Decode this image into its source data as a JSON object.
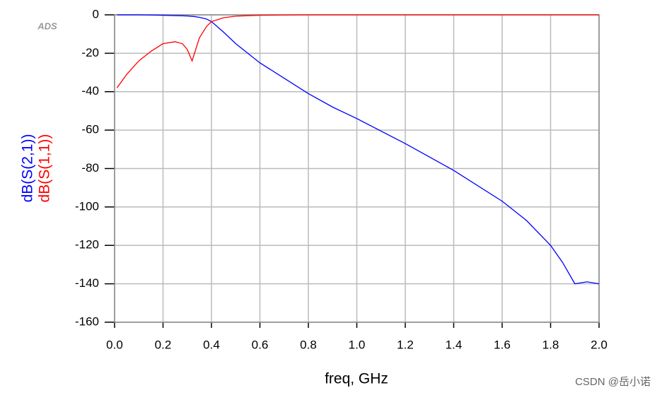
{
  "chart_data": {
    "type": "line",
    "logo": "ADS",
    "xlabel": "freq, GHz",
    "watermark": "CSDN @岳小诺",
    "x": [
      0.01,
      0.05,
      0.1,
      0.15,
      0.2,
      0.25,
      0.28,
      0.3,
      0.32,
      0.33,
      0.35,
      0.38,
      0.4,
      0.45,
      0.5,
      0.6,
      0.7,
      0.8,
      0.9,
      1.0,
      1.2,
      1.4,
      1.6,
      1.7,
      1.8,
      1.85,
      1.9,
      1.95,
      2.0
    ],
    "series": [
      {
        "name": "dB(S(2,1))",
        "color": "#0000ff",
        "values": [
          0,
          0,
          0,
          -0.1,
          -0.2,
          -0.4,
          -0.5,
          -0.6,
          -0.8,
          -0.9,
          -1.3,
          -2.2,
          -3.5,
          -9,
          -15,
          -25,
          -33,
          -41,
          -48,
          -54,
          -67,
          -81,
          -97,
          -107,
          -120,
          -129,
          -140,
          -139,
          -140
        ]
      },
      {
        "name": "dB(S(1,1))",
        "color": "#ff0000",
        "values": [
          -38,
          -31,
          -24,
          -19,
          -15,
          -14,
          -15,
          -18,
          -24,
          -20,
          -12,
          -6,
          -3.5,
          -1.5,
          -0.7,
          -0.2,
          -0.1,
          0,
          0,
          0,
          0,
          0,
          0,
          0,
          0,
          0,
          0,
          0,
          0
        ]
      }
    ],
    "xlim": [
      0,
      2
    ],
    "xticks": [
      {
        "value": 0,
        "label": "0.0"
      },
      0.2,
      0.4,
      0.6,
      0.8,
      {
        "value": 1,
        "label": "1.0"
      },
      1.2,
      1.4,
      1.6,
      1.8,
      {
        "value": 2,
        "label": "2.0"
      }
    ],
    "ylim": [
      -160,
      0
    ],
    "yticks": [
      0,
      -20,
      -40,
      -60,
      -80,
      -100,
      -120,
      -140,
      -160
    ],
    "grid": true
  }
}
